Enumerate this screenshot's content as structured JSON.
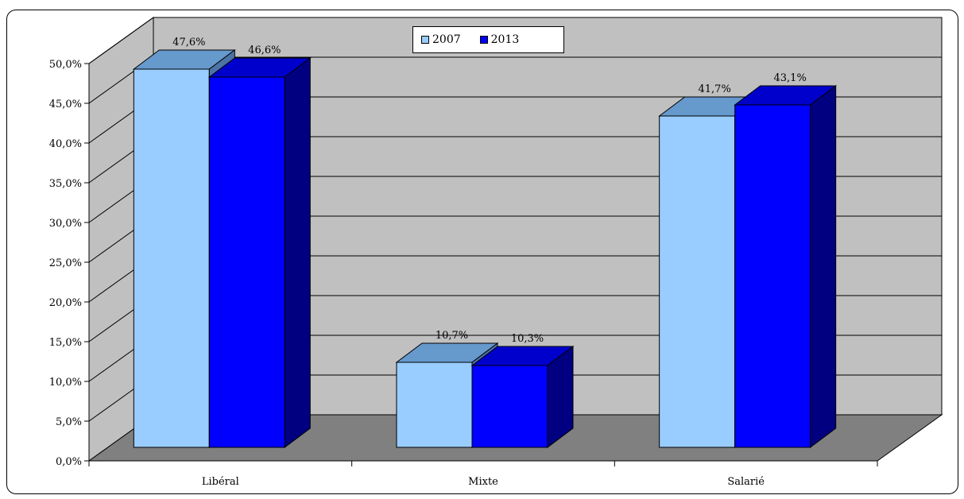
{
  "chart_data": {
    "type": "bar",
    "categories": [
      "Libéral",
      "Mixte",
      "Salarié"
    ],
    "series": [
      {
        "name": "2007",
        "values": [
          47.6,
          10.7,
          41.7
        ],
        "labels": [
          "47,6%",
          "10,7%",
          "41,7%"
        ],
        "color": "#99CCFF",
        "top_color": "#6699CC",
        "side_color": "#4D73A6"
      },
      {
        "name": "2013",
        "values": [
          46.6,
          10.3,
          43.1
        ],
        "labels": [
          "46,6%",
          "10,3%",
          "43,1%"
        ],
        "color": "#0000FF",
        "top_color": "#0000CC",
        "side_color": "#000080"
      }
    ],
    "y_ticks": [
      "0,0%",
      "5,0%",
      "10,0%",
      "15,0%",
      "20,0%",
      "25,0%",
      "30,0%",
      "35,0%",
      "40,0%",
      "45,0%",
      "50,0%"
    ],
    "ylim": [
      0,
      50
    ],
    "grid": true,
    "legend_position": "top-center",
    "wall_color": "#C0C0C0",
    "floor_color": "#808080"
  }
}
